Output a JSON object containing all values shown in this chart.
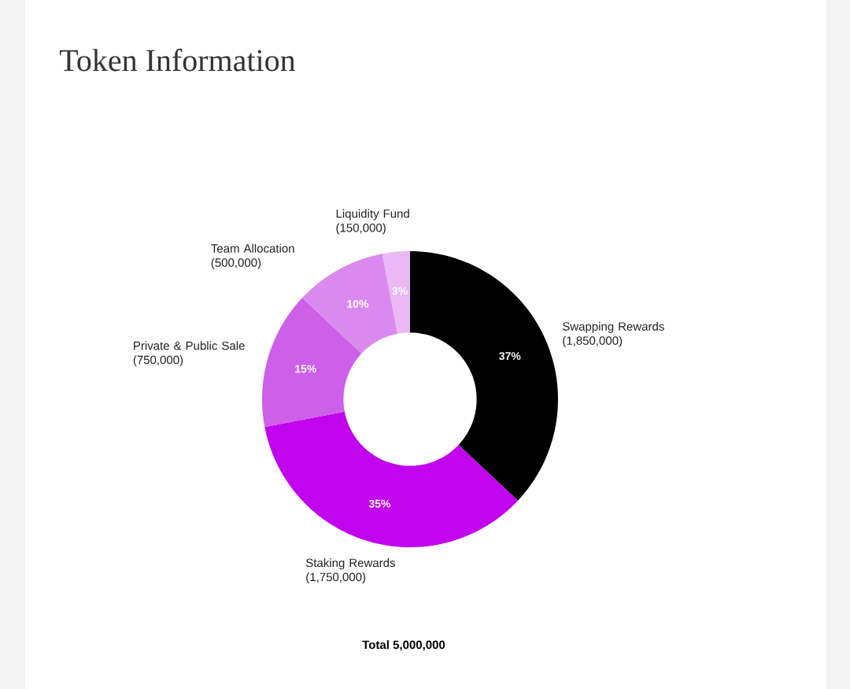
{
  "chart_data": {
    "type": "donut",
    "title": "Token Information",
    "categories": [
      "Swapping Rewards (1,850,000)",
      "Staking Rewards (1,750,000)",
      "Private & Public Sale (750,000)",
      "Team Allocation (500,000)",
      "Liquidity Fund (150,000)"
    ],
    "values": [
      37,
      35,
      15,
      10,
      3
    ],
    "colors": [
      "#000000",
      "#c203ee",
      "#cd5fe8",
      "#da8aee",
      "#e9b8f5"
    ],
    "value_labels": [
      "37%",
      "35%",
      "15%",
      "10%",
      "3%"
    ],
    "annotations": [
      "Total 5,000,000"
    ]
  }
}
